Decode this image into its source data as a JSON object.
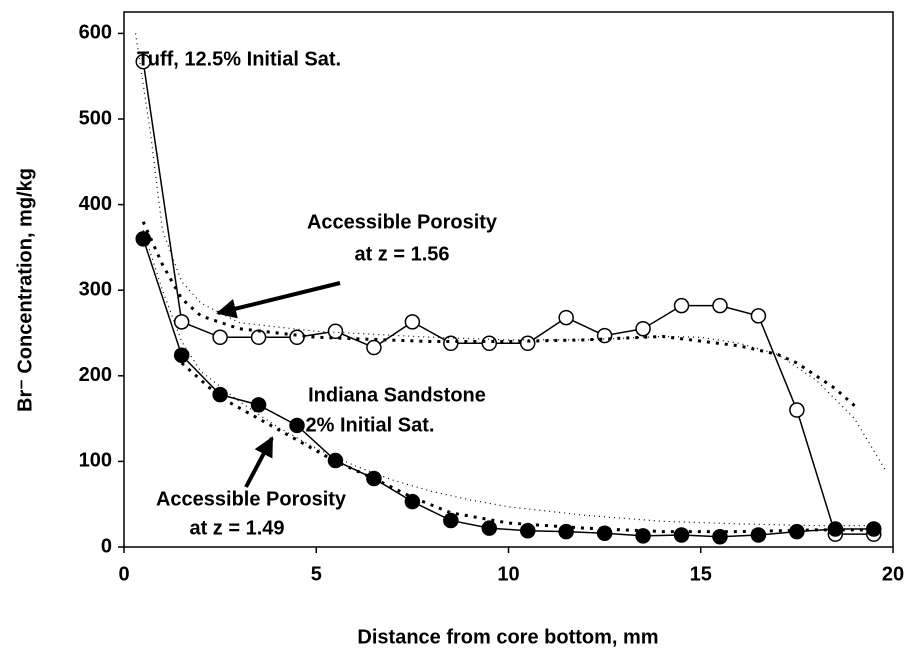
{
  "chart_data": {
    "type": "line",
    "x_label": "Distance from core bottom, mm",
    "y_label": "Br⁻ Concentration, mg/kg",
    "xlim": [
      0,
      20
    ],
    "xticks": [
      0,
      5,
      10,
      15,
      20
    ],
    "ylim": [
      0,
      625
    ],
    "yticks": [
      0,
      100,
      200,
      300,
      400,
      500,
      600
    ],
    "series": [
      {
        "style": "open-marker",
        "color": "#000000",
        "x": [
          0.5,
          1.5,
          2.5,
          3.5,
          4.5,
          5.5,
          6.5,
          7.5,
          8.5,
          9.5,
          10.5,
          11.5,
          12.5,
          13.5,
          14.5,
          15.5,
          16.5,
          17.5,
          18.5,
          19.5
        ],
        "values": [
          567,
          263,
          245,
          245,
          245,
          252,
          233,
          263,
          238,
          238,
          238,
          268,
          247,
          255,
          282,
          282,
          270,
          160,
          15,
          15
        ]
      },
      {
        "style": "filled-marker",
        "color": "#000000",
        "x": [
          0.5,
          1.5,
          2.5,
          3.5,
          4.5,
          5.5,
          6.5,
          7.5,
          8.5,
          9.5,
          10.5,
          11.5,
          12.5,
          13.5,
          14.5,
          15.5,
          16.5,
          17.5,
          18.5,
          19.5
        ],
        "values": [
          360,
          224,
          178,
          166,
          142,
          101,
          80,
          53,
          31,
          22,
          19,
          18,
          16,
          13,
          14,
          12,
          14,
          18,
          21,
          21
        ]
      },
      {
        "style": "thin-dotted",
        "color": "#000000",
        "x": [
          0.3,
          0.7,
          1,
          1.5,
          2,
          3,
          5,
          8,
          10,
          12,
          13,
          14,
          15,
          16,
          17,
          18,
          19,
          19.8
        ],
        "values": [
          600,
          480,
          370,
          310,
          285,
          262,
          252,
          245,
          242,
          242,
          244,
          246,
          245,
          238,
          225,
          195,
          150,
          90
        ]
      },
      {
        "style": "bold-dotted",
        "color": "#000000",
        "x": [
          0.5,
          1,
          1.5,
          2,
          3,
          5,
          8,
          10,
          12,
          14,
          16,
          17,
          17.5,
          18,
          18.5,
          19
        ],
        "values": [
          380,
          330,
          290,
          270,
          255,
          245,
          240,
          240,
          242,
          246,
          235,
          225,
          215,
          200,
          185,
          165
        ]
      },
      {
        "style": "thin-dotted",
        "color": "#000000",
        "x": [
          0.5,
          1,
          1.5,
          2,
          3,
          4,
          5,
          6,
          7,
          8,
          9,
          10,
          12,
          14,
          16,
          18,
          19.5
        ],
        "values": [
          370,
          300,
          240,
          205,
          170,
          140,
          115,
          95,
          78,
          65,
          55,
          47,
          37,
          30,
          27,
          25,
          25
        ]
      },
      {
        "style": "bold-dotted",
        "color": "#000000",
        "x": [
          1.5,
          2.5,
          3.5,
          4.5,
          5.5,
          6.5,
          7.5,
          8.5,
          10,
          12,
          14,
          16,
          18,
          19.5
        ],
        "values": [
          215,
          175,
          150,
          125,
          100,
          80,
          58,
          40,
          28,
          22,
          18,
          18,
          20,
          20
        ]
      }
    ],
    "annotations": [
      "Tuff, 12.5% Initial Sat.",
      "Accessible Porosity",
      "at z = 1.56",
      "Indiana Sandstone",
      "2% Initial Sat.",
      "Accessible Porosity",
      "at z = 1.49"
    ]
  }
}
